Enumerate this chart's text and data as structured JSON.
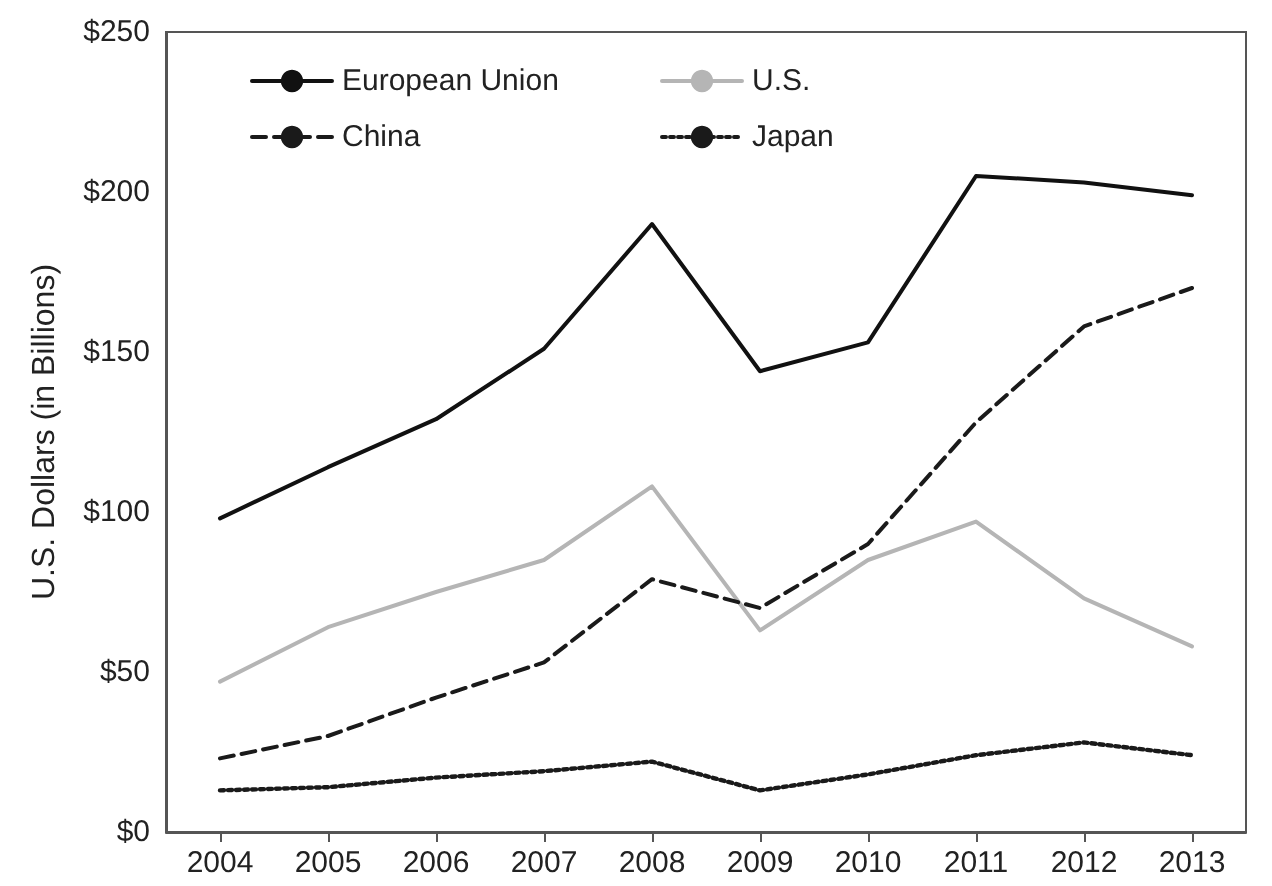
{
  "chart_data": {
    "type": "line",
    "ylabel": "U.S. Dollars (in Billions)",
    "categories": [
      "2004",
      "2005",
      "2006",
      "2007",
      "2008",
      "2009",
      "2010",
      "2011",
      "2012",
      "2013"
    ],
    "series": [
      {
        "name": "European Union",
        "color": "#111111",
        "line_style": "solid",
        "values": [
          98,
          114,
          129,
          151,
          190,
          144,
          153,
          205,
          203,
          199
        ]
      },
      {
        "name": "U.S.",
        "color": "#b5b5b5",
        "line_style": "solid",
        "values": [
          47,
          64,
          75,
          85,
          108,
          63,
          85,
          97,
          73,
          58
        ]
      },
      {
        "name": "China",
        "color": "#1a1a1a",
        "line_style": "dashed",
        "values": [
          23,
          30,
          42,
          53,
          79,
          70,
          90,
          128,
          158,
          170
        ]
      },
      {
        "name": "Japan",
        "color": "#1a1a1a",
        "line_style": "dotted",
        "values": [
          13,
          14,
          17,
          19,
          22,
          13,
          18,
          24,
          28,
          24
        ]
      }
    ],
    "ylim": [
      0,
      250
    ],
    "yticks": [
      {
        "value": 0,
        "label": "$0"
      },
      {
        "value": 50,
        "label": "$50"
      },
      {
        "value": 100,
        "label": "$100"
      },
      {
        "value": 150,
        "label": "$150"
      },
      {
        "value": 200,
        "label": "$200"
      },
      {
        "value": 250,
        "label": "$250"
      }
    ],
    "grid": false,
    "legend": "top left",
    "marker": "none"
  }
}
